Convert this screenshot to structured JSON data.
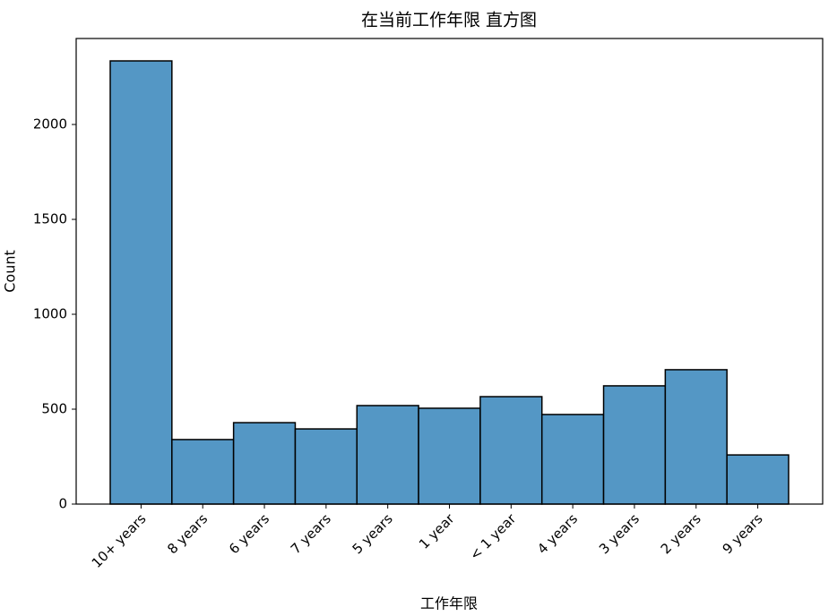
{
  "chart_data": {
    "type": "bar",
    "title": "在当前工作年限 直方图",
    "xlabel": "工作年限",
    "ylabel": "Count",
    "categories": [
      "10+ years",
      "8 years",
      "6 years",
      "7 years",
      "5 years",
      "1 year",
      "< 1 year",
      "4 years",
      "3 years",
      "2 years",
      "9 years"
    ],
    "values": [
      2335,
      340,
      429,
      396,
      519,
      505,
      566,
      472,
      623,
      708,
      259
    ],
    "color": "#5497c5",
    "edgecolor": "#000000",
    "ylim": [
      0,
      2453
    ],
    "yticks": [
      0,
      500,
      1000,
      1500,
      2000
    ],
    "grid": false
  }
}
